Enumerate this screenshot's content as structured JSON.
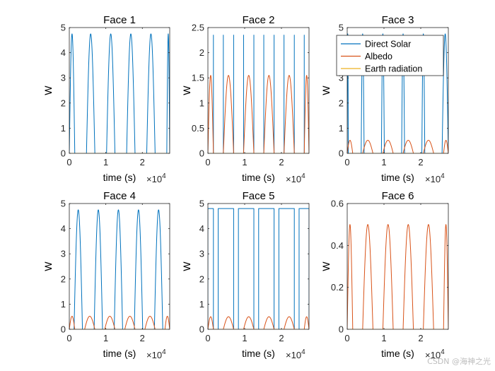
{
  "figure": {
    "colors": {
      "direct": "#0072BD",
      "albedo": "#D95319",
      "earth": "#EDB120",
      "axis": "#262626",
      "background": "#ffffff"
    }
  },
  "chart_data": [
    {
      "type": "line",
      "title": "Face 1",
      "xlabel": "time (s)",
      "ylabel": "W",
      "xlim": [
        0,
        27500
      ],
      "ylim": [
        0,
        5
      ],
      "xticks": [
        "0",
        "1",
        "2"
      ],
      "xtick_values": [
        0,
        10000,
        20000
      ],
      "yticks": [
        "0",
        "1",
        "2",
        "3",
        "4",
        "5"
      ],
      "ytick_values": [
        0,
        1,
        2,
        3,
        4,
        5
      ],
      "x_exponent_base": "×10",
      "x_exponent": "4",
      "series": [
        {
          "name": "Direct Solar",
          "color": "#0072BD",
          "pattern": "arch",
          "peak": 4.75,
          "on_intervals": [
            [
              0,
              1500
            ],
            [
              4700,
              7000
            ],
            [
              10200,
              12500
            ],
            [
              15700,
              18000
            ],
            [
              21200,
              23500
            ],
            [
              26700,
              27500
            ]
          ]
        },
        {
          "name": "Albedo",
          "color": "#D95319",
          "pattern": "zero"
        },
        {
          "name": "Earth radiation",
          "color": "#EDB120",
          "pattern": "zero"
        }
      ]
    },
    {
      "type": "line",
      "title": "Face 2",
      "xlabel": "time (s)",
      "ylabel": "W",
      "xlim": [
        0,
        27500
      ],
      "ylim": [
        0,
        2.5
      ],
      "xticks": [
        "0",
        "1",
        "2"
      ],
      "xtick_values": [
        0,
        10000,
        20000
      ],
      "yticks": [
        "0",
        "0.5",
        "1",
        "1.5",
        "2",
        "2.5"
      ],
      "ytick_values": [
        0,
        0.5,
        1,
        1.5,
        2,
        2.5
      ],
      "x_exponent_base": "×10",
      "x_exponent": "4",
      "series": [
        {
          "name": "Direct Solar",
          "color": "#0072BD",
          "pattern": "spikes",
          "peak": 2.35,
          "spike_times": [
            1500,
            4200,
            7000,
            9700,
            12500,
            15200,
            18000,
            20700,
            23500,
            26200
          ]
        },
        {
          "name": "Albedo",
          "color": "#D95319",
          "pattern": "arch",
          "peak": 1.55,
          "on_intervals": [
            [
              0,
              1500
            ],
            [
              4200,
              7000
            ],
            [
              9700,
              12500
            ],
            [
              15200,
              18000
            ],
            [
              20700,
              23500
            ],
            [
              26200,
              27500
            ]
          ]
        },
        {
          "name": "Earth radiation",
          "color": "#EDB120",
          "pattern": "zero"
        }
      ]
    },
    {
      "type": "line",
      "title": "Face 3",
      "xlabel": "time (s)",
      "ylabel": "W",
      "xlim": [
        0,
        27500
      ],
      "ylim": [
        0,
        5
      ],
      "xticks": [
        "0",
        "1",
        "2"
      ],
      "xtick_values": [
        0,
        10000,
        20000
      ],
      "yticks": [
        "0",
        "1",
        "2",
        "3",
        "4",
        "5"
      ],
      "ytick_values": [
        0,
        1,
        2,
        3,
        4,
        5
      ],
      "x_exponent_base": "×10",
      "x_exponent": "4",
      "legend": {
        "location": "top-right",
        "entries": [
          "Direct Solar",
          "Albedo",
          "Earth radiation"
        ]
      },
      "series": [
        {
          "name": "Direct Solar",
          "color": "#0072BD",
          "pattern": "arch",
          "peak": 4.75,
          "on_intervals": [
            [
              0,
              300
            ],
            [
              3800,
              4600
            ],
            [
              9300,
              10100
            ],
            [
              14800,
              15600
            ],
            [
              20300,
              21100
            ],
            [
              25800,
              27500
            ]
          ]
        },
        {
          "name": "Albedo",
          "color": "#D95319",
          "pattern": "arch",
          "peak": 0.52,
          "on_intervals": [
            [
              0,
              1500
            ],
            [
              4200,
              7000
            ],
            [
              9700,
              12500
            ],
            [
              15200,
              18000
            ],
            [
              20700,
              23500
            ],
            [
              26200,
              27500
            ]
          ]
        },
        {
          "name": "Earth radiation",
          "color": "#EDB120",
          "pattern": "zero"
        }
      ]
    },
    {
      "type": "line",
      "title": "Face 4",
      "xlabel": "time (s)",
      "ylabel": "W",
      "xlim": [
        0,
        27500
      ],
      "ylim": [
        0,
        5
      ],
      "xticks": [
        "0",
        "1",
        "2"
      ],
      "xtick_values": [
        0,
        10000,
        20000
      ],
      "yticks": [
        "0",
        "1",
        "2",
        "3",
        "4",
        "5"
      ],
      "ytick_values": [
        0,
        1,
        2,
        3,
        4,
        5
      ],
      "x_exponent_base": "×10",
      "x_exponent": "4",
      "series": [
        {
          "name": "Direct Solar",
          "color": "#0072BD",
          "pattern": "arch",
          "peak": 4.75,
          "on_intervals": [
            [
              1300,
              3600
            ],
            [
              6800,
              9100
            ],
            [
              12300,
              14600
            ],
            [
              17800,
              20100
            ],
            [
              23300,
              25600
            ]
          ]
        },
        {
          "name": "Albedo",
          "color": "#D95319",
          "pattern": "arch",
          "peak": 0.52,
          "on_intervals": [
            [
              0,
              1500
            ],
            [
              4200,
              7000
            ],
            [
              9700,
              12500
            ],
            [
              15200,
              18000
            ],
            [
              20700,
              23500
            ],
            [
              26200,
              27500
            ]
          ]
        },
        {
          "name": "Earth radiation",
          "color": "#EDB120",
          "pattern": "zero"
        }
      ]
    },
    {
      "type": "line",
      "title": "Face 5",
      "xlabel": "time (s)",
      "ylabel": "W",
      "xlim": [
        0,
        27500
      ],
      "ylim": [
        0,
        5
      ],
      "xticks": [
        "0",
        "1",
        "2"
      ],
      "xtick_values": [
        0,
        10000,
        20000
      ],
      "yticks": [
        "0",
        "1",
        "2",
        "3",
        "4",
        "5"
      ],
      "ytick_values": [
        0,
        1,
        2,
        3,
        4,
        5
      ],
      "x_exponent_base": "×10",
      "x_exponent": "4",
      "series": [
        {
          "name": "Direct Solar",
          "color": "#0072BD",
          "pattern": "square",
          "peak": 4.8,
          "on_intervals": [
            [
              0,
              1500
            ],
            [
              2800,
              7000
            ],
            [
              8300,
              12500
            ],
            [
              13800,
              18000
            ],
            [
              19300,
              23500
            ],
            [
              24800,
              27500
            ]
          ]
        },
        {
          "name": "Albedo",
          "color": "#D95319",
          "pattern": "arch",
          "peak": 0.5,
          "on_intervals": [
            [
              0,
              1500
            ],
            [
              4200,
              7000
            ],
            [
              9700,
              12500
            ],
            [
              15200,
              18000
            ],
            [
              20700,
              23500
            ],
            [
              26200,
              27500
            ]
          ]
        },
        {
          "name": "Earth radiation",
          "color": "#EDB120",
          "pattern": "zero"
        }
      ]
    },
    {
      "type": "line",
      "title": "Face 6",
      "xlabel": "time (s)",
      "ylabel": "W",
      "xlim": [
        0,
        27500
      ],
      "ylim": [
        0,
        0.6
      ],
      "xticks": [
        "0",
        "1",
        "2"
      ],
      "xtick_values": [
        0,
        10000,
        20000
      ],
      "yticks": [
        "0",
        "0.2",
        "0.4",
        "0.6"
      ],
      "ytick_values": [
        0,
        0.2,
        0.4,
        0.6
      ],
      "x_exponent_base": "×10",
      "x_exponent": "4",
      "series": [
        {
          "name": "Direct Solar",
          "color": "#0072BD",
          "pattern": "zero"
        },
        {
          "name": "Albedo",
          "color": "#D95319",
          "pattern": "arch",
          "peak": 0.5,
          "on_intervals": [
            [
              0,
              1500
            ],
            [
              4200,
              7000
            ],
            [
              9700,
              12500
            ],
            [
              15200,
              18000
            ],
            [
              20700,
              23500
            ],
            [
              26200,
              27500
            ]
          ]
        },
        {
          "name": "Earth radiation",
          "color": "#EDB120",
          "pattern": "zero"
        }
      ]
    }
  ],
  "watermark": "CSDN @海神之光"
}
